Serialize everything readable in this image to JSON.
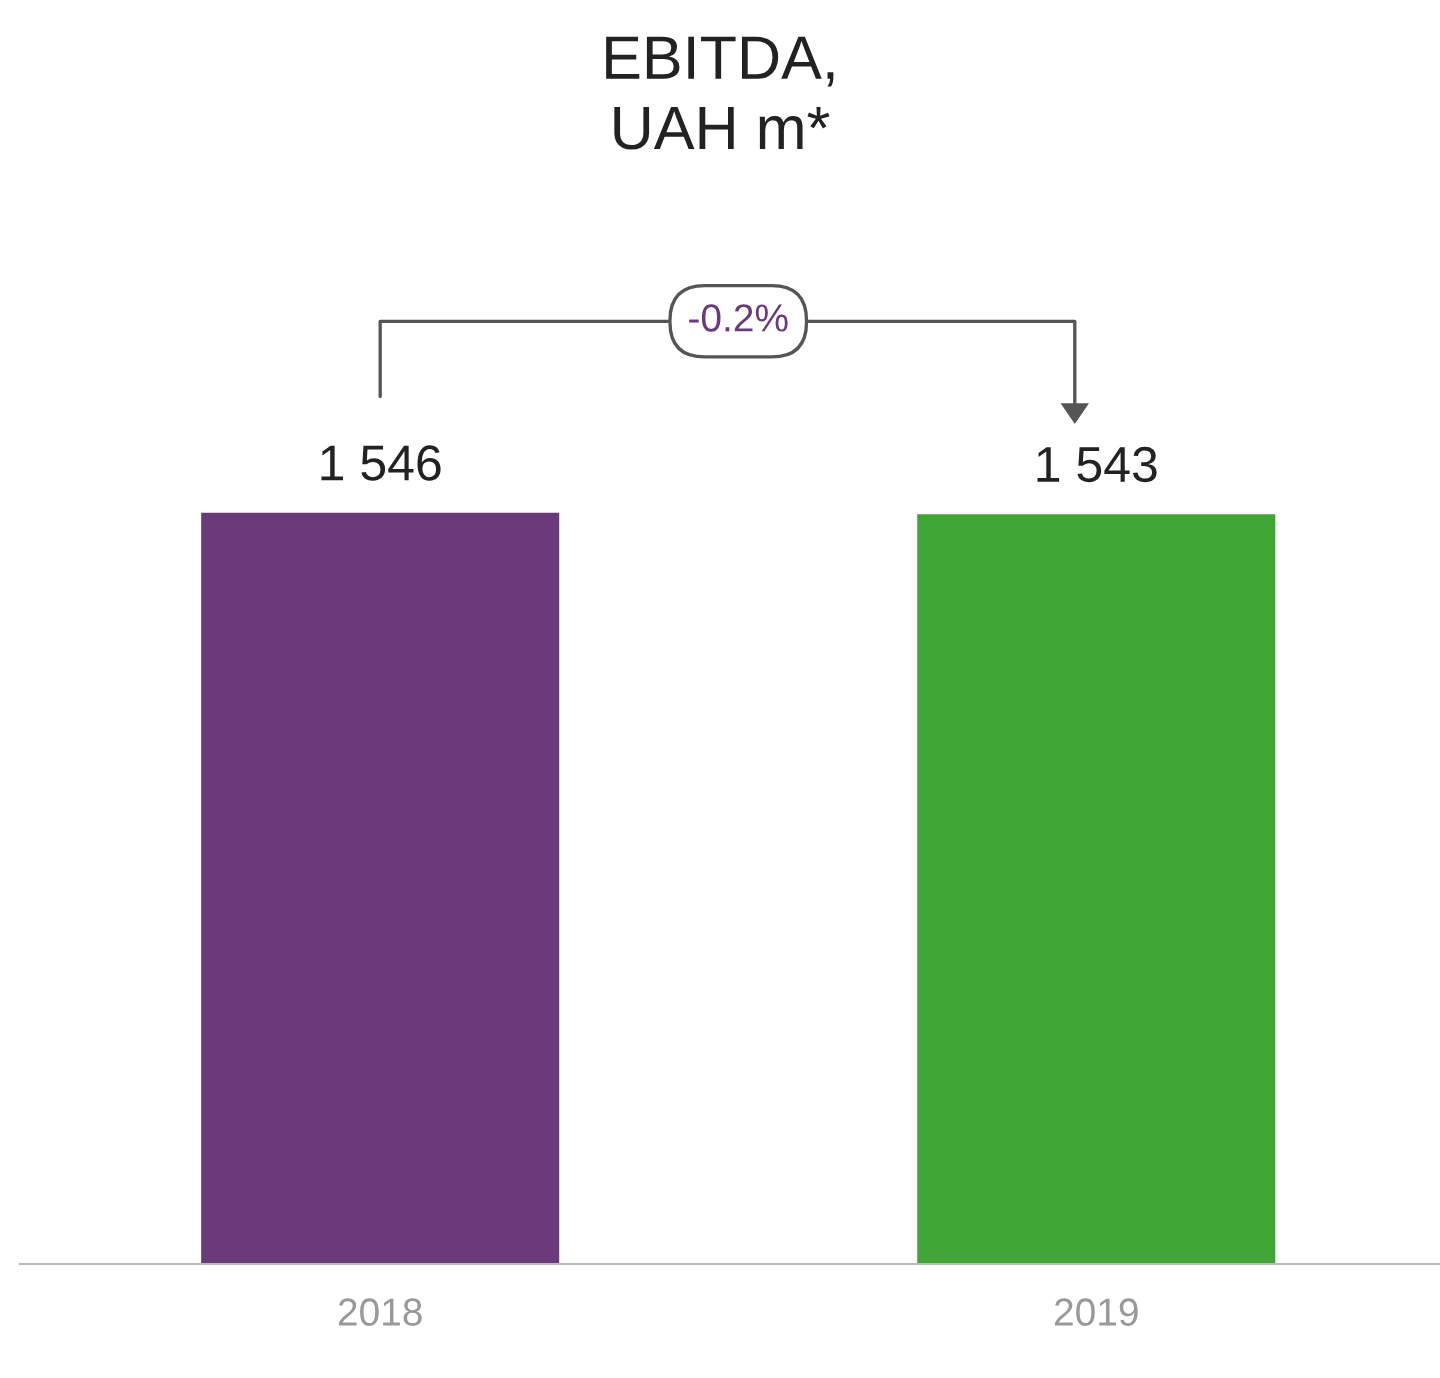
{
  "chart_data": {
    "type": "bar",
    "title": "EBITDA,\nUAH m*",
    "categories": [
      "2018",
      "2019"
    ],
    "values": [
      1546,
      1543
    ],
    "colors": [
      "#6b3a7a",
      "#3fa535"
    ],
    "value_labels": [
      "1 546",
      "1 543"
    ],
    "annotations": [
      "-0.2%"
    ]
  }
}
